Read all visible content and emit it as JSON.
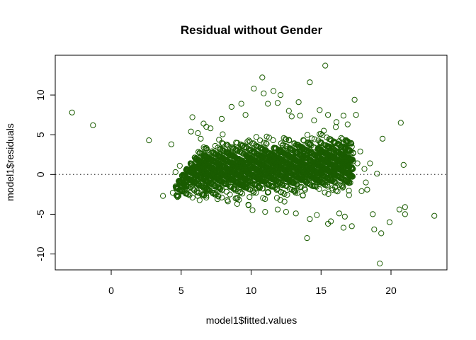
{
  "colors": {
    "points": "#1a5c00",
    "background": "#ffffff",
    "refline": "#555555"
  },
  "chart_data": {
    "type": "scatter",
    "title": "Residual without Gender",
    "xlabel": "model1$fitted.values",
    "ylabel": "model1$residuals",
    "xlim": [
      -4,
      24
    ],
    "ylim": [
      -12,
      15
    ],
    "x_ticks": [
      0,
      5,
      10,
      15,
      20
    ],
    "y_ticks": [
      -10,
      -5,
      0,
      5,
      10
    ],
    "grid": false,
    "legend": "none",
    "reference_line": {
      "orientation": "horizontal",
      "y": 0,
      "style": "dotted"
    },
    "series": [
      {
        "marker": "open-circle",
        "points": [
          [
            -2.8,
            7.8
          ],
          [
            -1.3,
            6.2
          ],
          [
            2.7,
            4.3
          ],
          [
            4.3,
            3.8
          ],
          [
            3.7,
            -2.7
          ],
          [
            4.4,
            -2.3
          ],
          [
            4.6,
            0.3
          ],
          [
            4.9,
            1.1
          ],
          [
            5.2,
            -2.0
          ],
          [
            5.6,
            -2.6
          ],
          [
            5.8,
            7.2
          ],
          [
            5.7,
            5.4
          ],
          [
            6.2,
            5.2
          ],
          [
            6.6,
            6.4
          ],
          [
            6.8,
            6.0
          ],
          [
            7.1,
            5.8
          ],
          [
            6.4,
            4.5
          ],
          [
            7.9,
            7.0
          ],
          [
            8.6,
            8.5
          ],
          [
            9.3,
            8.9
          ],
          [
            9.6,
            7.5
          ],
          [
            10.2,
            10.8
          ],
          [
            10.8,
            12.2
          ],
          [
            11.2,
            8.9
          ],
          [
            11.6,
            10.5
          ],
          [
            12.1,
            10.0
          ],
          [
            12.7,
            8.0
          ],
          [
            13.4,
            9.1
          ],
          [
            14.2,
            11.6
          ],
          [
            15.3,
            13.7
          ],
          [
            13.5,
            7.4
          ],
          [
            14.9,
            8.1
          ],
          [
            15.5,
            7.5
          ],
          [
            16.1,
            6.6
          ],
          [
            16.3,
            4.2
          ],
          [
            16.6,
            7.4
          ],
          [
            16.9,
            6.3
          ],
          [
            17.4,
            9.4
          ],
          [
            17.5,
            7.5
          ],
          [
            17.2,
            3.5
          ],
          [
            17.8,
            2.9
          ],
          [
            17.6,
            1.4
          ],
          [
            18.1,
            0.7
          ],
          [
            18.3,
            -1.9
          ],
          [
            18.5,
            1.4
          ],
          [
            19.0,
            0.1
          ],
          [
            19.4,
            4.5
          ],
          [
            20.7,
            6.5
          ],
          [
            20.9,
            1.2
          ],
          [
            20.6,
            -4.4
          ],
          [
            21.0,
            -4.1
          ],
          [
            21.0,
            -5.0
          ],
          [
            19.9,
            -6.0
          ],
          [
            19.3,
            -7.4
          ],
          [
            18.8,
            -6.9
          ],
          [
            18.7,
            -5.0
          ],
          [
            19.2,
            -11.2
          ],
          [
            17.2,
            -6.5
          ],
          [
            16.7,
            -5.3
          ],
          [
            16.6,
            -6.7
          ],
          [
            16.3,
            -4.9
          ],
          [
            15.7,
            -5.9
          ],
          [
            15.5,
            -6.2
          ],
          [
            14.7,
            -5.1
          ],
          [
            14.2,
            -5.6
          ],
          [
            14.0,
            -8.0
          ],
          [
            13.2,
            -4.9
          ],
          [
            12.5,
            -4.7
          ],
          [
            11.9,
            -4.4
          ],
          [
            11.0,
            -4.7
          ],
          [
            10.1,
            -4.5
          ],
          [
            9.8,
            -3.8
          ],
          [
            9.0,
            -3.7
          ],
          [
            8.3,
            -3.2
          ],
          [
            7.6,
            -3.1
          ],
          [
            6.8,
            -2.9
          ],
          [
            6.2,
            -2.7
          ],
          [
            5.4,
            -2.4
          ],
          [
            23.1,
            -5.2
          ],
          [
            16.9,
            1.6
          ],
          [
            17.0,
            -2.6
          ],
          [
            17.9,
            -2.1
          ],
          [
            18.2,
            -1.0
          ],
          [
            15.9,
            2.9
          ],
          [
            16.4,
            2.1
          ],
          [
            16.8,
            3.4
          ],
          [
            15.0,
            3.1
          ],
          [
            15.8,
            0.4
          ],
          [
            16.0,
            -1.6
          ],
          [
            16.7,
            -0.9
          ],
          [
            14.5,
            6.8
          ],
          [
            15.2,
            5.5
          ],
          [
            12.9,
            7.3
          ],
          [
            11.9,
            9.0
          ],
          [
            10.9,
            10.2
          ]
        ],
        "dense_band": {
          "count": 3500,
          "x_range": [
            4.6,
            17.3
          ],
          "center_slope": 0.1,
          "center_at_x": 11.0,
          "center_y": 0.9,
          "spread_sd": 2.0,
          "stripe_slope": -1.0,
          "stripe_spacing": 1.0,
          "bounds": {
            "upper": "9.5 - 0.2*(x - 12)^2",
            "lower": "-2.8 - 0.35*(x - 4.6)"
          }
        }
      }
    ]
  }
}
